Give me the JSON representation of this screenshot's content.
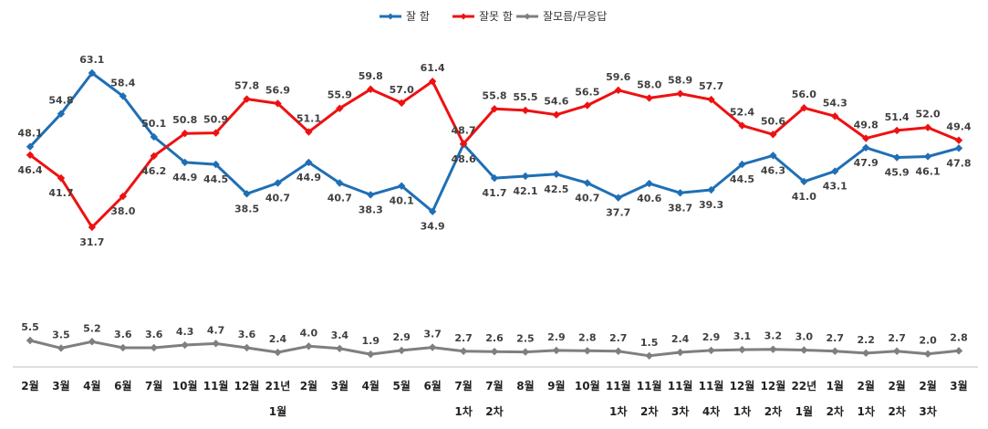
{
  "chart_data": {
    "type": "line",
    "categories": [
      [
        "2월",
        ""
      ],
      [
        "3월",
        ""
      ],
      [
        "4월",
        ""
      ],
      [
        "6월",
        ""
      ],
      [
        "7월",
        ""
      ],
      [
        "10월",
        ""
      ],
      [
        "11월",
        ""
      ],
      [
        "12월",
        ""
      ],
      [
        "21년",
        "1월"
      ],
      [
        "2월",
        ""
      ],
      [
        "3월",
        ""
      ],
      [
        "4월",
        ""
      ],
      [
        "5월",
        ""
      ],
      [
        "6월",
        ""
      ],
      [
        "7월",
        "1차"
      ],
      [
        "7월",
        "2차"
      ],
      [
        "8월",
        ""
      ],
      [
        "9월",
        ""
      ],
      [
        "10월",
        ""
      ],
      [
        "11월",
        "1차"
      ],
      [
        "11월",
        "2차"
      ],
      [
        "11월",
        "3차"
      ],
      [
        "11월",
        "4차"
      ],
      [
        "12월",
        "1차"
      ],
      [
        "12월",
        "2차"
      ],
      [
        "22년",
        "1월"
      ],
      [
        "1월",
        "2차"
      ],
      [
        "2월",
        "1차"
      ],
      [
        "2월",
        "2차"
      ],
      [
        "2월",
        "3차"
      ],
      [
        "3월",
        ""
      ]
    ],
    "series": [
      {
        "name": "잘 함",
        "color": "#1f6fb5",
        "values": [
          48.1,
          54.8,
          63.1,
          58.4,
          50.1,
          44.9,
          44.5,
          38.5,
          40.7,
          44.9,
          40.7,
          38.3,
          40.1,
          34.9,
          48.6,
          41.7,
          42.1,
          42.5,
          40.7,
          37.7,
          40.6,
          38.7,
          39.3,
          44.5,
          46.3,
          41.0,
          43.1,
          47.9,
          45.9,
          46.1,
          47.8
        ]
      },
      {
        "name": "잘못 함",
        "color": "#ee1111",
        "values": [
          46.4,
          41.7,
          31.7,
          38.0,
          46.2,
          50.8,
          50.9,
          57.8,
          56.9,
          51.1,
          55.9,
          59.8,
          57.0,
          61.4,
          48.7,
          55.8,
          55.5,
          54.6,
          56.5,
          59.6,
          58.0,
          58.9,
          57.7,
          52.4,
          50.6,
          56.0,
          54.3,
          49.8,
          51.4,
          52.0,
          49.4
        ]
      },
      {
        "name": "잘모름/무응답",
        "color": "#7f7f7f",
        "values": [
          5.5,
          3.5,
          5.2,
          3.6,
          3.6,
          4.3,
          4.7,
          3.6,
          2.4,
          4.0,
          3.4,
          1.9,
          2.9,
          3.7,
          2.7,
          2.6,
          2.5,
          2.9,
          2.8,
          2.7,
          1.5,
          2.4,
          2.9,
          3.1,
          3.2,
          3.0,
          2.7,
          2.2,
          2.7,
          2.0,
          2.8
        ]
      }
    ],
    "legend": "top-center",
    "grid": false
  }
}
